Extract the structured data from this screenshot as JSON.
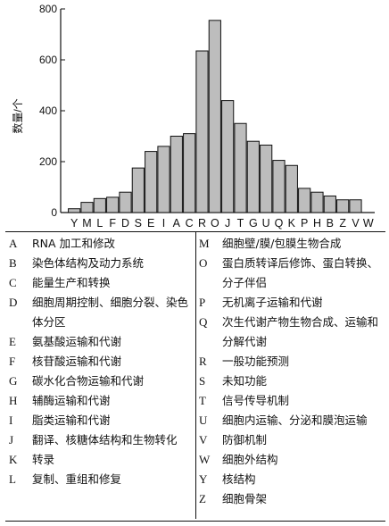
{
  "chart_data": {
    "type": "bar",
    "ylabel": "数量/个",
    "xlabel": "",
    "ylim": [
      0,
      800
    ],
    "yticks": [
      "0",
      "200",
      "400",
      "600",
      "800"
    ],
    "categories": [
      "Y",
      "M",
      "L",
      "F",
      "D",
      "S",
      "E",
      "I",
      "A",
      "C",
      "R",
      "O",
      "J",
      "T",
      "G",
      "U",
      "Q",
      "K",
      "P",
      "H",
      "B",
      "Z",
      "V",
      "W"
    ],
    "values": [
      15,
      40,
      55,
      60,
      80,
      175,
      240,
      260,
      300,
      310,
      635,
      755,
      440,
      350,
      280,
      265,
      205,
      185,
      95,
      80,
      65,
      50,
      50,
      0
    ]
  },
  "legend": {
    "left": [
      {
        "code": "A",
        "label": "RNA 加工和修改"
      },
      {
        "code": "B",
        "label": "染色体结构及动力系统"
      },
      {
        "code": "C",
        "label": "能量生产和转换"
      },
      {
        "code": "D",
        "label": "细胞周期控制、细胞分裂、染色体分区"
      },
      {
        "code": "E",
        "label": "氨基酸运输和代谢"
      },
      {
        "code": "F",
        "label": "核苷酸运输和代谢"
      },
      {
        "code": "G",
        "label": "碳水化合物运输和代谢"
      },
      {
        "code": "H",
        "label": "辅酶运输和代谢"
      },
      {
        "code": "I",
        "label": "脂类运输和代谢"
      },
      {
        "code": "J",
        "label": "翻译、核糖体结构和生物转化"
      },
      {
        "code": "K",
        "label": "转录"
      },
      {
        "code": "L",
        "label": "复制、重组和修复"
      }
    ],
    "right": [
      {
        "code": "M",
        "label": "细胞壁/膜/包膜生物合成"
      },
      {
        "code": "O",
        "label": "蛋白质转译后修饰、蛋白转换、分子伴侣"
      },
      {
        "code": "P",
        "label": "无机离子运输和代谢"
      },
      {
        "code": "Q",
        "label": "次生代谢产物生物合成、运输和分解代谢"
      },
      {
        "code": "R",
        "label": "一般功能预测"
      },
      {
        "code": "S",
        "label": "未知功能"
      },
      {
        "code": "T",
        "label": "信号传导机制"
      },
      {
        "code": "U",
        "label": "细胞内运输、分泌和膜泡运输"
      },
      {
        "code": "V",
        "label": "防御机制"
      },
      {
        "code": "W",
        "label": "细胞外结构"
      },
      {
        "code": "Y",
        "label": "核结构"
      },
      {
        "code": "Z",
        "label": "细胞骨架"
      }
    ]
  }
}
